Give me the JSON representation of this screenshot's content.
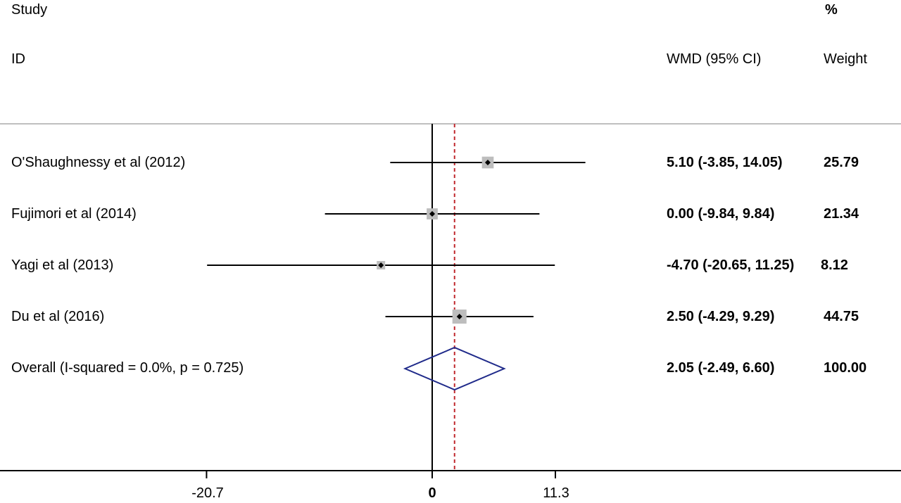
{
  "headers": {
    "study": "Study",
    "id": "ID",
    "effect": "WMD (95% CI)",
    "percent": "%",
    "weight": "Weight"
  },
  "chart_data": {
    "type": "forest",
    "title": "",
    "xlabel": "",
    "ylabel": "",
    "null_value": 0,
    "x_ticks": [
      {
        "value": -20.7,
        "label": "-20.7"
      },
      {
        "value": 0,
        "label": "0"
      },
      {
        "value": 11.3,
        "label": "11.3"
      }
    ],
    "xlim": [
      -20.7,
      11.3
    ],
    "studies": [
      {
        "name": "O'Shaughnessy et al (2012)",
        "estimate": 5.1,
        "lower": -3.85,
        "upper": 14.05,
        "ci_text": "5.10 (-3.85, 14.05)",
        "weight": 25.79,
        "weight_text": "25.79"
      },
      {
        "name": "Fujimori et al (2014)",
        "estimate": 0.0,
        "lower": -9.84,
        "upper": 9.84,
        "ci_text": "0.00 (-9.84, 9.84)",
        "weight": 21.34,
        "weight_text": "21.34"
      },
      {
        "name": "Yagi et al (2013)",
        "estimate": -4.7,
        "lower": -20.65,
        "upper": 11.25,
        "ci_text": "-4.70 (-20.65, 11.25)",
        "weight": 8.12,
        "weight_text": "8.12"
      },
      {
        "name": "Du et al (2016)",
        "estimate": 2.5,
        "lower": -4.29,
        "upper": 9.29,
        "ci_text": "2.50 (-4.29, 9.29)",
        "weight": 44.75,
        "weight_text": "44.75"
      }
    ],
    "overall": {
      "label": "Overall  (I-squared = 0.0%, p = 0.725)",
      "estimate": 2.05,
      "lower": -2.49,
      "upper": 6.6,
      "ci_text": "2.05 (-2.49, 6.60)",
      "weight_text": "100.00"
    },
    "colors": {
      "line": "#000000",
      "box": "#bdbdbd",
      "diamond": "#1f2a8a",
      "overall_line": "#c0282d",
      "separator": "#bfbfbf"
    }
  }
}
